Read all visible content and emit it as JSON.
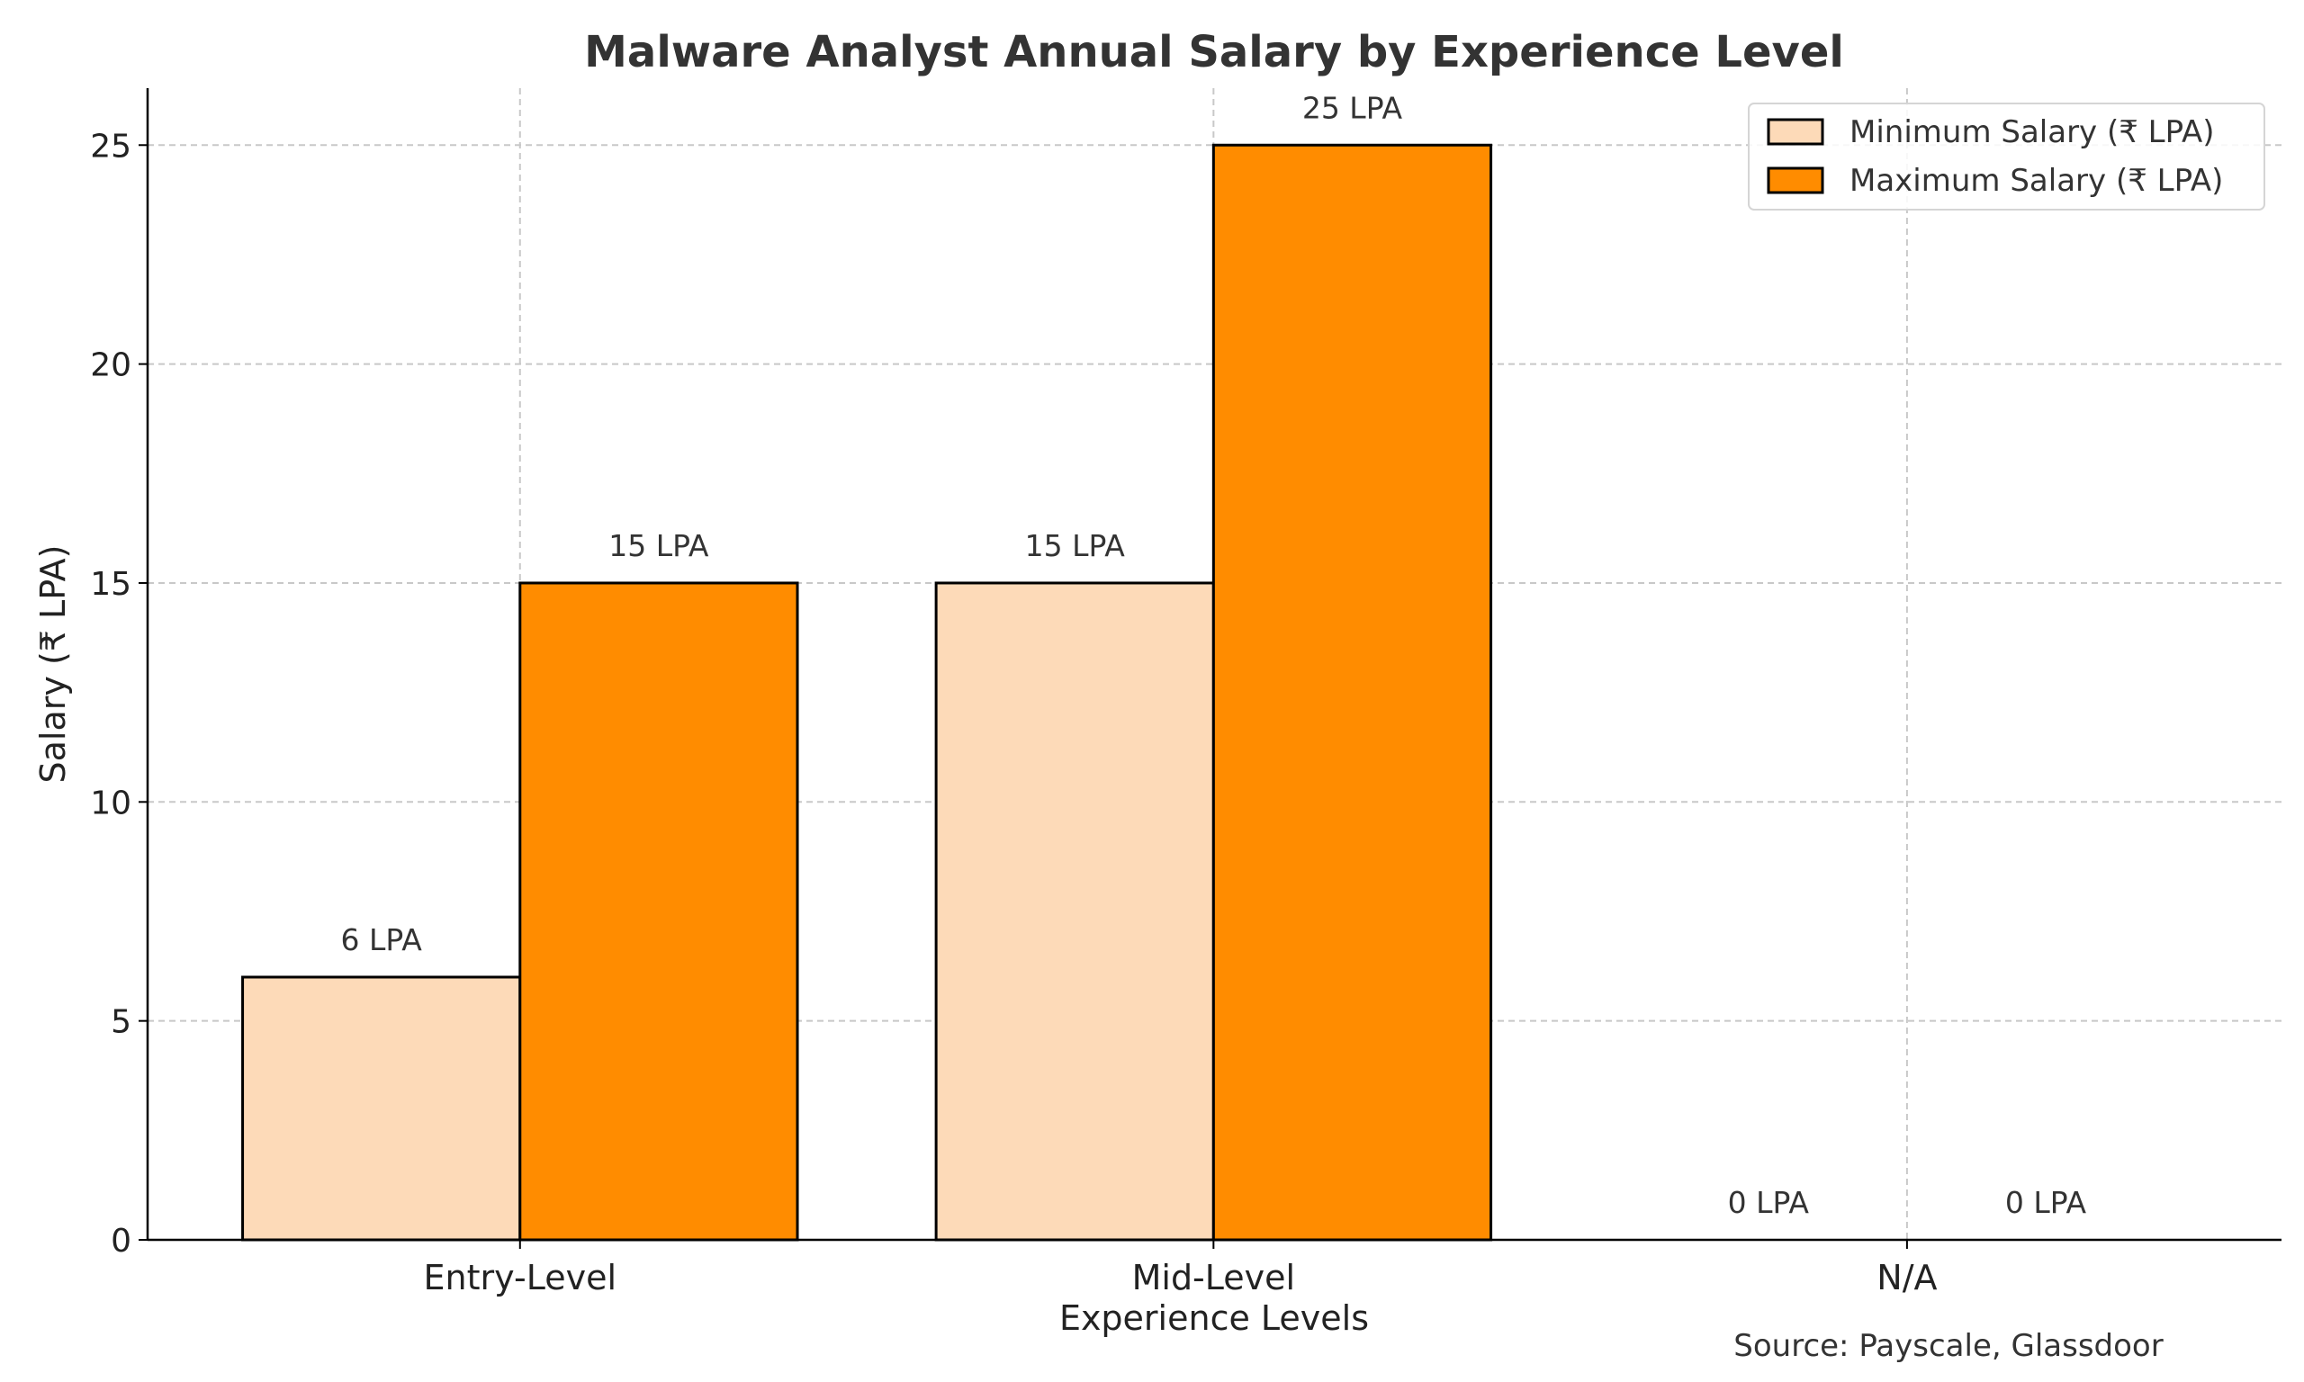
{
  "chart_data": {
    "type": "bar",
    "title": "Malware Analyst Annual Salary by Experience Level",
    "xlabel": "Experience Levels",
    "ylabel": "Salary (₹ LPA)",
    "categories": [
      "Entry-Level",
      "Mid-Level",
      "N/A"
    ],
    "series": [
      {
        "name": "Minimum Salary (₹ LPA)",
        "values": [
          6,
          15,
          0
        ],
        "color": "#FDDAB8",
        "labels": [
          "6 LPA",
          "15 LPA",
          "0 LPA"
        ]
      },
      {
        "name": "Maximum Salary (₹ LPA)",
        "values": [
          15,
          25,
          0
        ],
        "color": "#FF8C00",
        "labels": [
          "15 LPA",
          "25 LPA",
          "0 LPA"
        ]
      }
    ],
    "yticks": [
      0,
      5,
      10,
      15,
      20,
      25
    ],
    "ylim": [
      0,
      26.3
    ],
    "grid": true,
    "legend": "top-right",
    "annotation": "Source: Payscale, Glassdoor"
  }
}
